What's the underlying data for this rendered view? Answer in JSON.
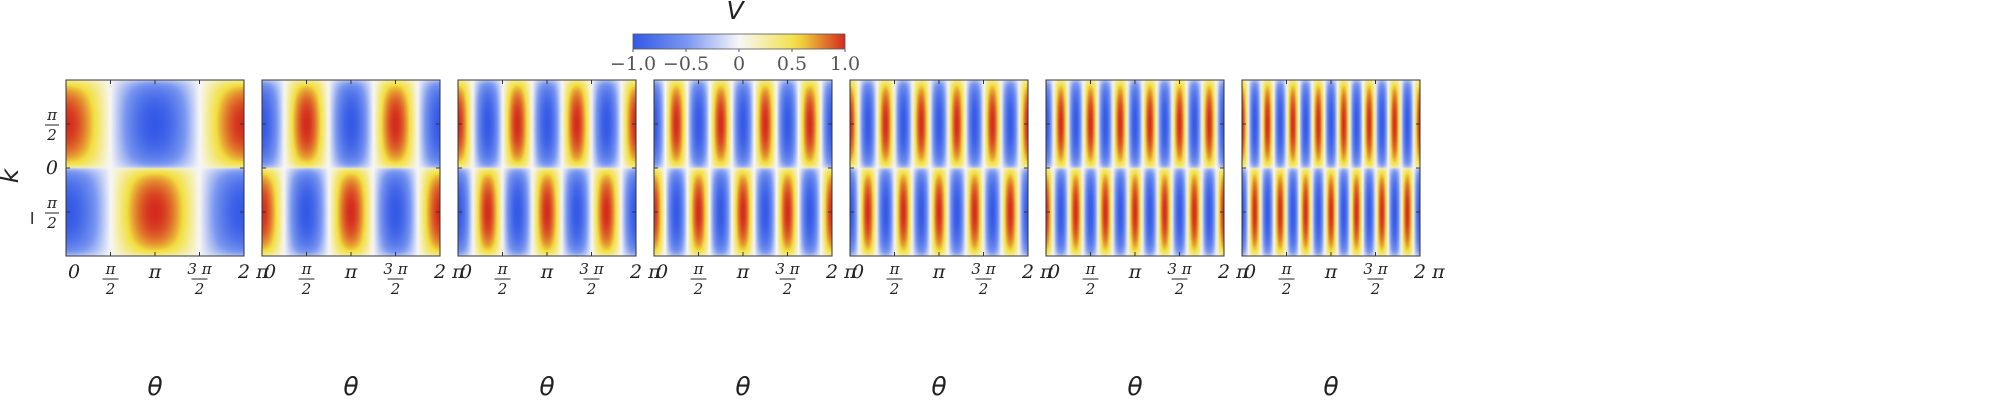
{
  "chart_data": {
    "type": "heatmap",
    "title": "",
    "colorbar": {
      "label": "V",
      "range": [
        -1.0,
        1.0
      ],
      "tick_labels": [
        "−1.0",
        "−0.5",
        "0",
        "0.5",
        "1.0"
      ],
      "tick_values": [
        -1.0,
        -0.5,
        0,
        0.5,
        1.0
      ],
      "colors": {
        "low": "#3459e6",
        "mid": "#f7f7f7",
        "high": "#d42a1e",
        "yellow": "#f2e03f"
      }
    },
    "xlabel": "θ",
    "ylabel": "k",
    "xlim": [
      0,
      6.2832
    ],
    "ylim": [
      -3.1416,
      3.1416
    ],
    "x_tick_labels": [
      {
        "num": "",
        "den": "",
        "pre": "0",
        "value": 0
      },
      {
        "num": "π",
        "den": "2",
        "pre": "",
        "value": 1.5708
      },
      {
        "num": "",
        "den": "",
        "pre": "π",
        "value": 3.1416
      },
      {
        "num": "3 π",
        "den": "2",
        "pre": "",
        "value": 4.7124
      },
      {
        "num": "",
        "den": "",
        "pre": "2 π",
        "value": 6.2832
      }
    ],
    "y_tick_labels": [
      {
        "num": "π",
        "den": "2",
        "prefix": "",
        "value": 1.5708
      },
      {
        "num": "",
        "den": "",
        "prefix": "0",
        "value": 0
      },
      {
        "num": "π",
        "den": "2",
        "prefix": "−",
        "value": -1.5708
      }
    ],
    "panels": [
      {
        "n": 1
      },
      {
        "n": 2
      },
      {
        "n": 3
      },
      {
        "n": 4
      },
      {
        "n": 5
      },
      {
        "n": 6
      },
      {
        "n": 7
      }
    ]
  }
}
